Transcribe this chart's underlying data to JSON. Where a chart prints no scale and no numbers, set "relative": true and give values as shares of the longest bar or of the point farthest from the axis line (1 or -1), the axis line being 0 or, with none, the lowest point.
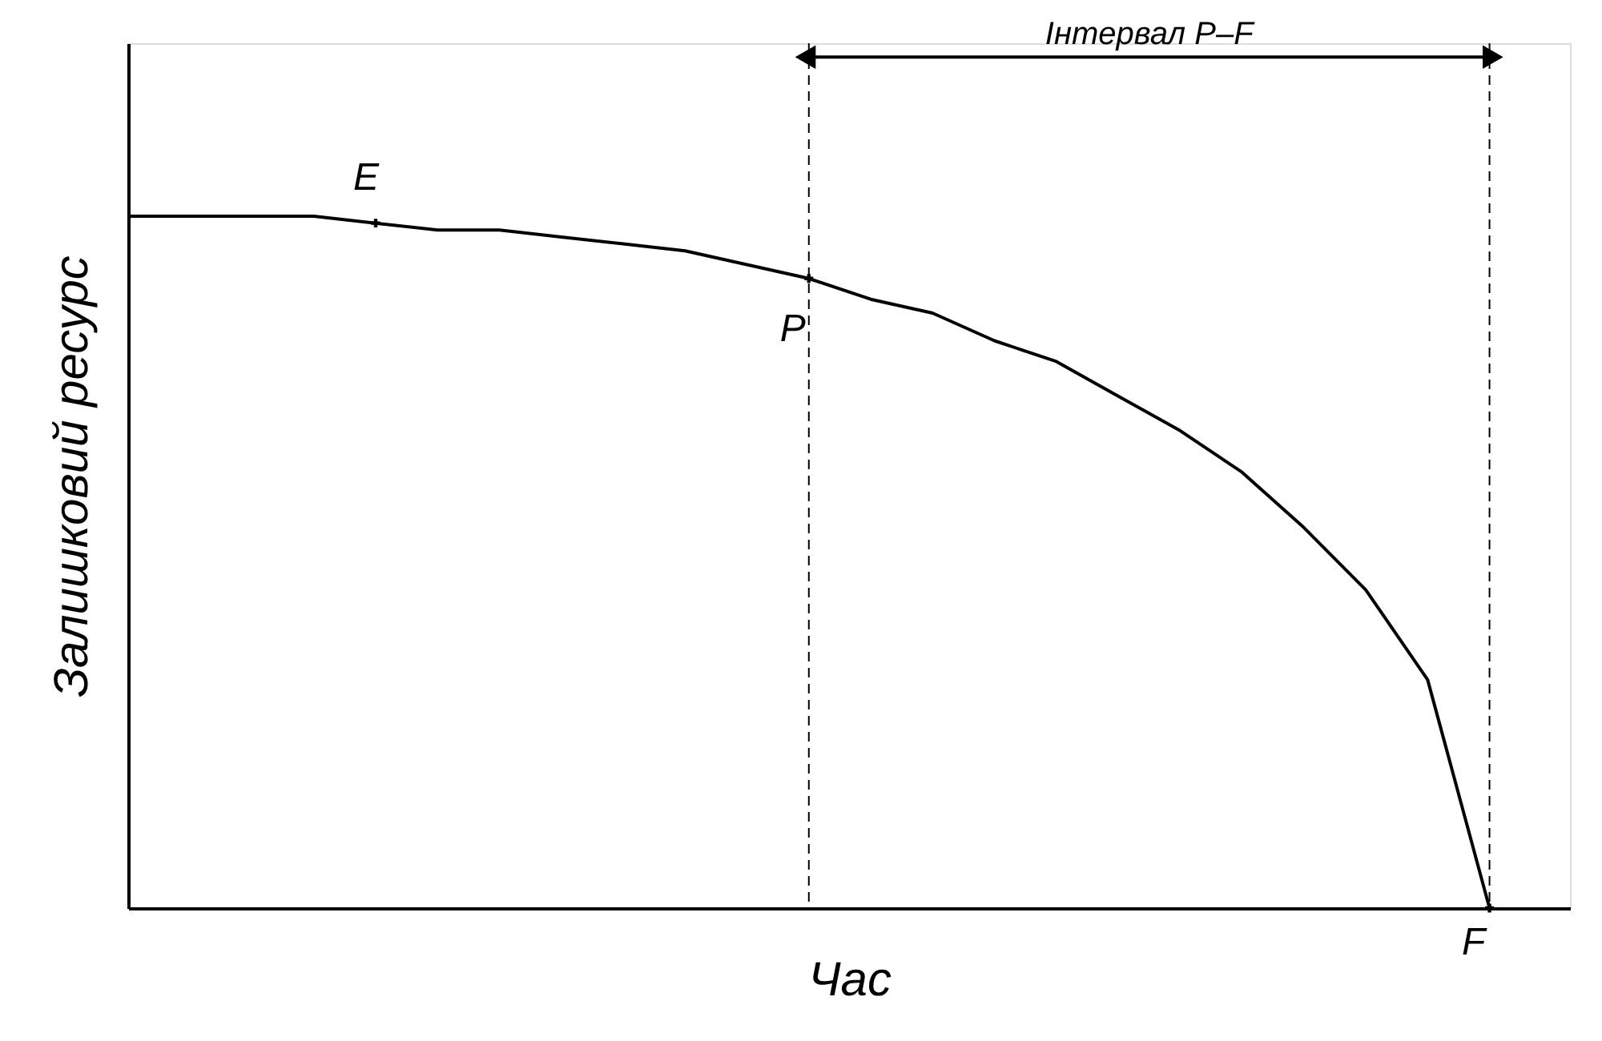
{
  "chart_data": {
    "type": "line",
    "relative": true,
    "xlabel": "Час",
    "ylabel": "Залишковий ресурс",
    "categories": [
      null,
      null,
      null,
      null,
      null,
      null,
      null,
      null,
      null,
      null,
      null,
      null,
      null,
      null,
      null,
      null,
      null,
      null,
      null,
      null,
      null,
      null,
      null
    ],
    "series": [
      {
        "color": "#000000",
        "values": [
          1.0,
          1.0,
          1.0,
          1.0,
          0.99,
          0.98,
          0.98,
          0.97,
          0.96,
          0.95,
          0.93,
          0.91,
          0.88,
          0.86,
          0.82,
          0.79,
          0.74,
          0.69,
          0.63,
          0.55,
          0.46,
          0.33,
          0.0
        ]
      }
    ],
    "annotations": [
      {
        "text": "E",
        "y": 0.99
      },
      {
        "text": "P",
        "y": 0.91
      },
      "F",
      "Інтервал P–F"
    ],
    "grid": false,
    "tick_labels": false,
    "marker": "none",
    "line_style": "solid"
  }
}
